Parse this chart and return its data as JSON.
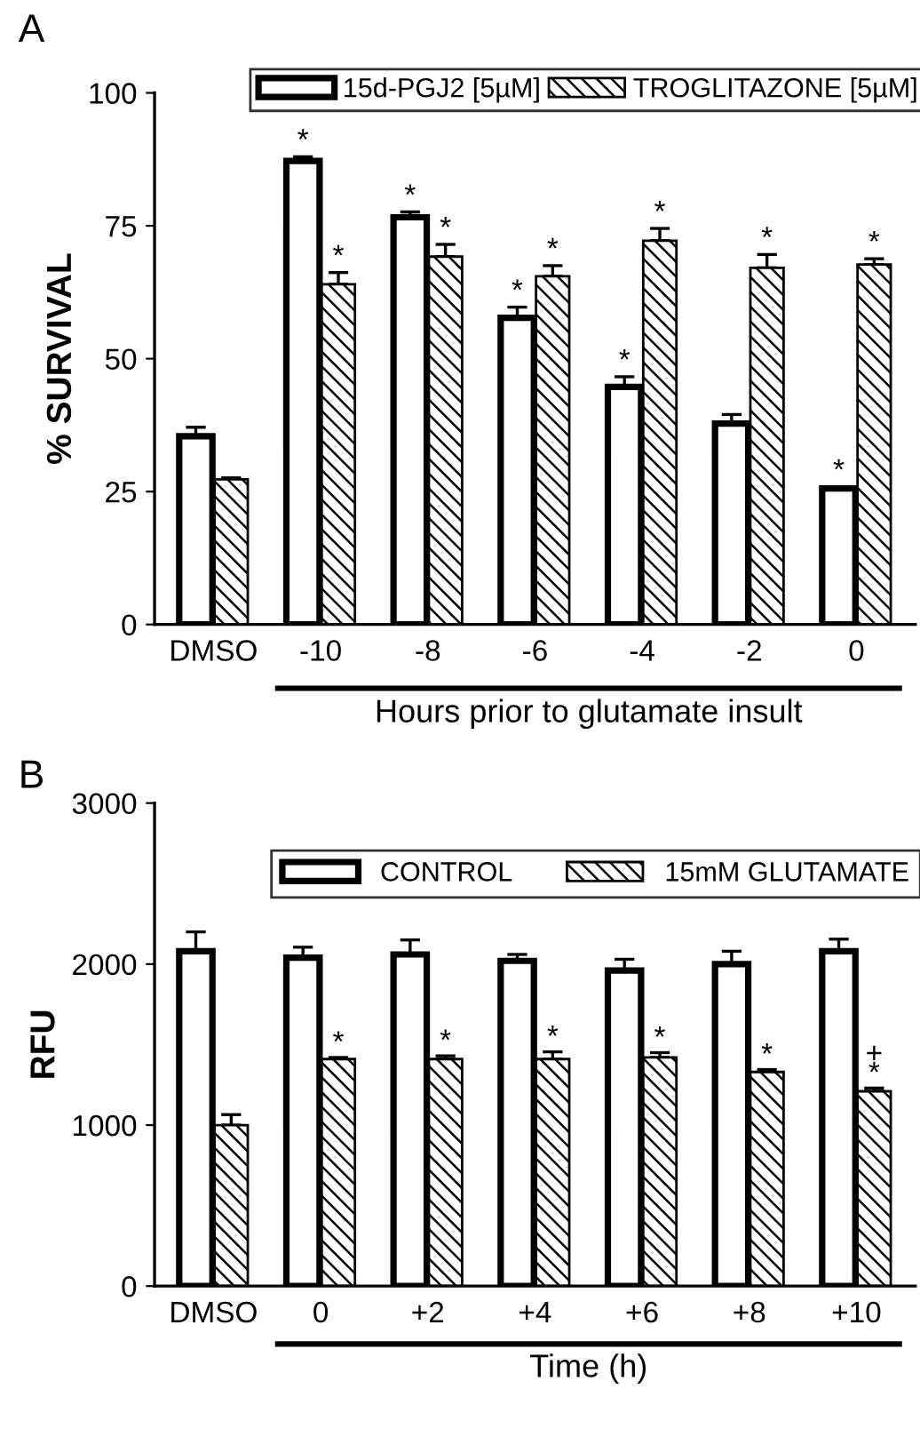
{
  "chart_data": [
    {
      "type": "bar",
      "ylabel": "% SURVIVAL",
      "xlabel": "Hours prior to glutamate insult",
      "categories": [
        "DMSO",
        "-10",
        "-8",
        "-6",
        "-4",
        "-2",
        "0"
      ],
      "ylim": [
        0,
        100
      ],
      "yticks": [
        0,
        25,
        50,
        75,
        100
      ],
      "grid": false,
      "legend": "top",
      "series": [
        {
          "name": "15d-PGJ2 [5µM]",
          "color": "#ffffff",
          "values": [
            35.4,
            87.2,
            76.6,
            57.7,
            44.7,
            37.8,
            25.6
          ],
          "errors": [
            1.7,
            0.8,
            1,
            2,
            1.9,
            1.7,
            0.3
          ]
        },
        {
          "name": "TROGLITAZONE [5µM]",
          "color": "#000000",
          "values": [
            27.3,
            64,
            69.2,
            65.5,
            72.2,
            67.1,
            67.7
          ],
          "errors": [
            0.3,
            2.2,
            2.3,
            2,
            2.3,
            2.5,
            1.1
          ]
        }
      ],
      "annotations": [
        "A",
        {
          "text": "*",
          "x": "-10",
          "y": 87.2
        },
        {
          "text": "*",
          "x": "-10",
          "y": 64
        },
        {
          "text": "*",
          "x": "-8",
          "y": 76.6
        },
        {
          "text": "*",
          "x": "-8",
          "y": 69.2
        },
        {
          "text": "*",
          "x": "-6",
          "y": 57.7
        },
        {
          "text": "*",
          "x": "-6",
          "y": 65.5
        },
        {
          "text": "*",
          "x": "-4",
          "y": 44.7
        },
        {
          "text": "*",
          "x": "-4",
          "y": 72.2
        },
        {
          "text": "*",
          "x": "-2",
          "y": 67.1
        },
        {
          "text": "*",
          "x": "0",
          "y": 25.6
        },
        {
          "text": "*",
          "x": "0",
          "y": 67.7
        }
      ]
    },
    {
      "type": "bar",
      "ylabel": "RFU",
      "xlabel": "Time (h)",
      "categories": [
        "DMSO",
        "0",
        "+2",
        "+4",
        "+6",
        "+8",
        "+10"
      ],
      "ylim": [
        0,
        3000
      ],
      "yticks": [
        0,
        1000,
        2000,
        3000
      ],
      "grid": false,
      "legend": "top",
      "series": [
        {
          "name": "CONTROL",
          "color": "#ffffff",
          "values": [
            2080,
            2040,
            2060,
            2020,
            1960,
            2000,
            2080
          ],
          "errors": [
            120,
            65,
            90,
            40,
            70,
            80,
            75
          ]
        },
        {
          "name": "15mM GLUTAMATE",
          "color": "#000000",
          "values": [
            1000,
            1410,
            1410,
            1410,
            1420,
            1330,
            1210
          ],
          "errors": [
            65,
            10,
            20,
            45,
            30,
            15,
            20
          ]
        }
      ],
      "annotations": [
        "B",
        {
          "text": "*",
          "x": "0",
          "y": 1410
        },
        {
          "text": "*",
          "x": "+2",
          "y": 1410
        },
        {
          "text": "*",
          "x": "+4",
          "y": 1410
        },
        {
          "text": "*",
          "x": "+6",
          "y": 1420
        },
        {
          "text": "*",
          "x": "+8",
          "y": 1330
        },
        {
          "text": "*",
          "x": "+10",
          "y": 1210
        },
        {
          "text": "+",
          "x": "+10",
          "y": 1210
        }
      ]
    }
  ]
}
